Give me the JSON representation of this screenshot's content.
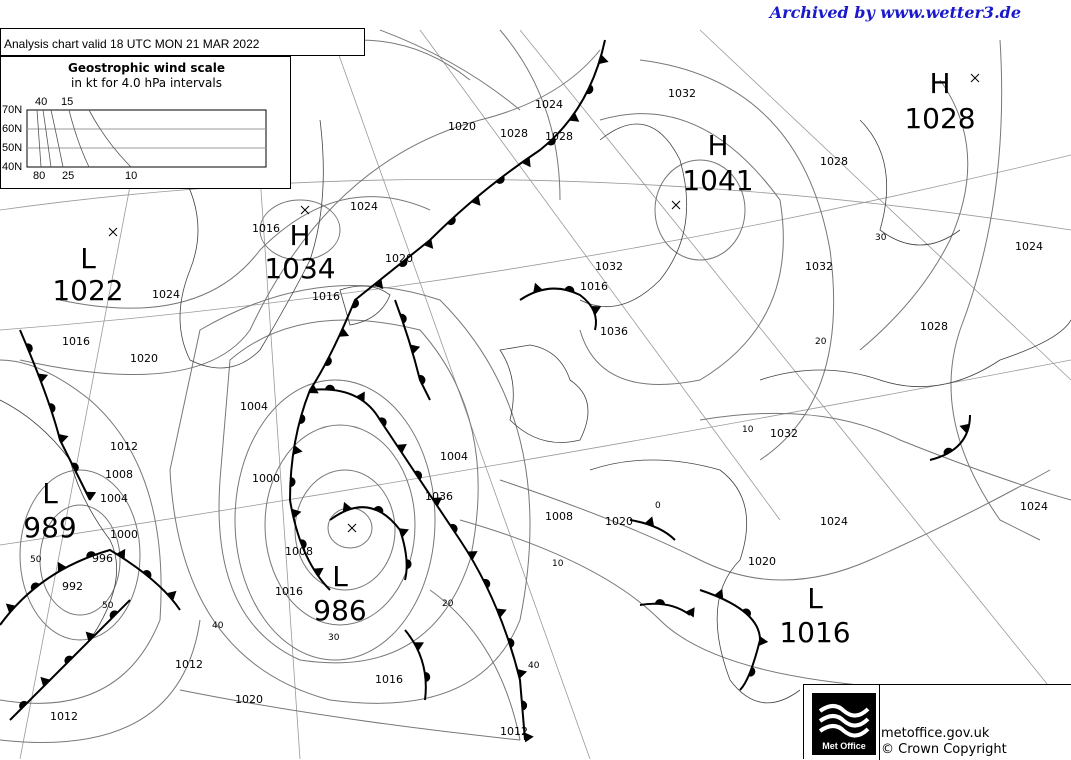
{
  "header": {
    "archive_credit": "Archived by www.wetter3.de",
    "chart_title": "Analysis chart  valid 18 UTC MON 21  MAR 2022"
  },
  "wind_scale": {
    "title": "Geostrophic wind scale",
    "subtitle": "in kt for 4.0 hPa intervals",
    "lat_labels": [
      "70N",
      "60N",
      "50N",
      "40N"
    ],
    "top_labels": [
      "40",
      "15"
    ],
    "bottom_labels": [
      "80",
      "25",
      "10"
    ]
  },
  "pressure_centres": [
    {
      "type": "L",
      "value": "1022"
    },
    {
      "type": "H",
      "value": "1034"
    },
    {
      "type": "L",
      "value": "989"
    },
    {
      "type": "L",
      "value": "986"
    },
    {
      "type": "H",
      "value": "1041"
    },
    {
      "type": "H",
      "value": "1028"
    },
    {
      "type": "L",
      "value": "1016"
    }
  ],
  "isobar_labels": [
    "1016",
    "1024",
    "1028",
    "1032",
    "1020",
    "1024",
    "1028",
    "1020",
    "1016",
    "1024",
    "1020",
    "1016",
    "1012",
    "1008",
    "1004",
    "1000",
    "996",
    "992",
    "1012",
    "1004",
    "1000",
    "1008",
    "1016",
    "1012",
    "1020",
    "1016",
    "1012",
    "1008",
    "1004",
    "1036",
    "1032",
    "1036",
    "1032",
    "1028",
    "1024",
    "1020",
    "1024",
    "1032",
    "1028",
    "1024",
    "1020",
    "1016"
  ],
  "wind_labels": [
    "50",
    "40",
    "30",
    "20",
    "10",
    "0",
    "10",
    "20",
    "30",
    "40",
    "50"
  ],
  "footer": {
    "logo_text": "Met Office",
    "site": "metoffice.gov.uk",
    "copyright": "© Crown Copyright"
  },
  "colors": {
    "isobar": "#777777",
    "front": "#000000",
    "credit": "#1a1acc"
  }
}
